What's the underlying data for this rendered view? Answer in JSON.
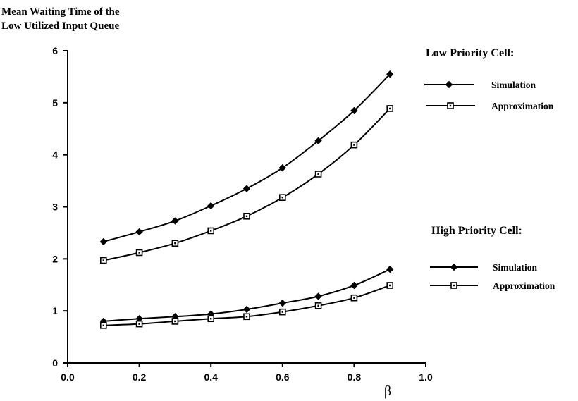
{
  "chart_data": {
    "type": "line",
    "title_lines": [
      "Mean Waiting Time of the",
      "Low Utilized Input Queue"
    ],
    "xlabel": "β",
    "ylabel": "",
    "xlim": [
      0.0,
      1.0
    ],
    "ylim": [
      0,
      6
    ],
    "x_ticks": [
      "0.0",
      "0.2",
      "0.4",
      "0.6",
      "0.8",
      "1.0"
    ],
    "y_ticks": [
      "0",
      "1",
      "2",
      "3",
      "4",
      "5",
      "6"
    ],
    "grid": false,
    "x": [
      0.1,
      0.2,
      0.3,
      0.4,
      0.5,
      0.6,
      0.7,
      0.8,
      0.9
    ],
    "legend_groups": [
      {
        "heading": "Low Priority Cell:",
        "entries": [
          {
            "label": "Simulation",
            "marker": "diamond"
          },
          {
            "label": "Approximation",
            "marker": "square"
          }
        ]
      },
      {
        "heading": "High Priority Cell:",
        "entries": [
          {
            "label": "Simulation",
            "marker": "diamond"
          },
          {
            "label": "Approximation",
            "marker": "square"
          }
        ]
      }
    ],
    "series": [
      {
        "group": "Low Priority Cell:",
        "name": "Simulation",
        "marker": "diamond",
        "values": [
          2.33,
          2.52,
          2.73,
          3.02,
          3.35,
          3.75,
          4.27,
          4.85,
          5.55
        ]
      },
      {
        "group": "Low Priority Cell:",
        "name": "Approximation",
        "marker": "square",
        "values": [
          1.97,
          2.12,
          2.3,
          2.54,
          2.82,
          3.18,
          3.63,
          4.19,
          4.89
        ]
      },
      {
        "group": "High Priority Cell:",
        "name": "Simulation",
        "marker": "diamond",
        "values": [
          0.8,
          0.85,
          0.89,
          0.94,
          1.03,
          1.15,
          1.28,
          1.49,
          1.8
        ]
      },
      {
        "group": "High Priority Cell:",
        "name": "Approximation",
        "marker": "square",
        "values": [
          0.72,
          0.75,
          0.8,
          0.85,
          0.89,
          0.98,
          1.1,
          1.25,
          1.49
        ]
      }
    ]
  }
}
